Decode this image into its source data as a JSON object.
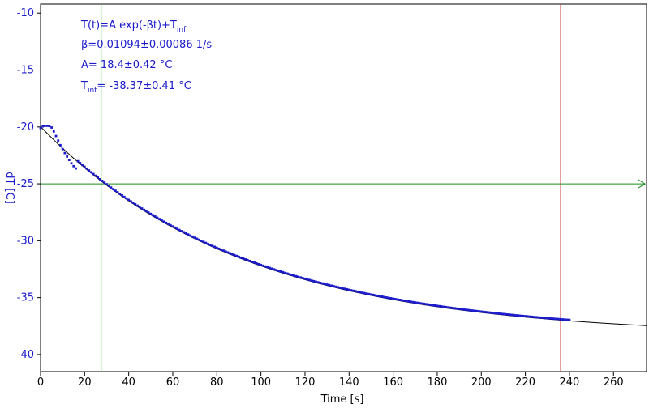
{
  "chart_data": {
    "type": "scatter",
    "title": "",
    "xlabel": "Time [s]",
    "ylabel": "dT [C]",
    "xlim": [
      0,
      275
    ],
    "ylim": [
      -41.5,
      -9.2
    ],
    "xticks": [
      0,
      20,
      40,
      60,
      80,
      100,
      120,
      140,
      160,
      180,
      200,
      220,
      240,
      260
    ],
    "yticks": [
      -10,
      -15,
      -20,
      -25,
      -30,
      -35,
      -40
    ],
    "grid": false,
    "series": [
      {
        "kind": "measured",
        "color": "#1a1acc",
        "data_end": 240,
        "head_x": [
          0,
          1,
          2,
          3,
          4,
          5,
          6,
          7,
          8,
          9,
          10,
          11,
          12,
          13,
          14,
          15,
          16
        ],
        "head_y": [
          -20.1,
          -19.95,
          -19.9,
          -19.9,
          -19.92,
          -20.05,
          -20.4,
          -20.8,
          -21.2,
          -21.6,
          -21.95,
          -22.3,
          -22.6,
          -22.9,
          -23.2,
          -23.45,
          -23.65
        ],
        "fit_offset_after_head": 0.08
      },
      {
        "kind": "fit",
        "color": "#000000",
        "A": 18.4,
        "beta": 0.01094,
        "T_inf": -38.37,
        "x_range": [
          0,
          275
        ]
      }
    ],
    "annotations": {
      "formula": {
        "prefix": "T(t)=A exp(-βt)+T",
        "sub": "inf",
        "suffix": ""
      },
      "beta": "β=0.01094±0.00086 1/s",
      "amplitude": "A= 18.4±0.42 °C",
      "tinf": {
        "prefix": "T",
        "sub": "inf",
        "suffix": "= -38.37±0.41 °C"
      }
    },
    "markers": {
      "green_vertical_x": 27.5,
      "red_vertical_x": 236,
      "green_horizontal_y": -25,
      "green_color": "#22cc22",
      "red_color": "#cc2222",
      "hline_color": "#1a8a1a"
    },
    "colors": {
      "tick_labels": "#1a1acc",
      "axis": "#000000"
    }
  }
}
